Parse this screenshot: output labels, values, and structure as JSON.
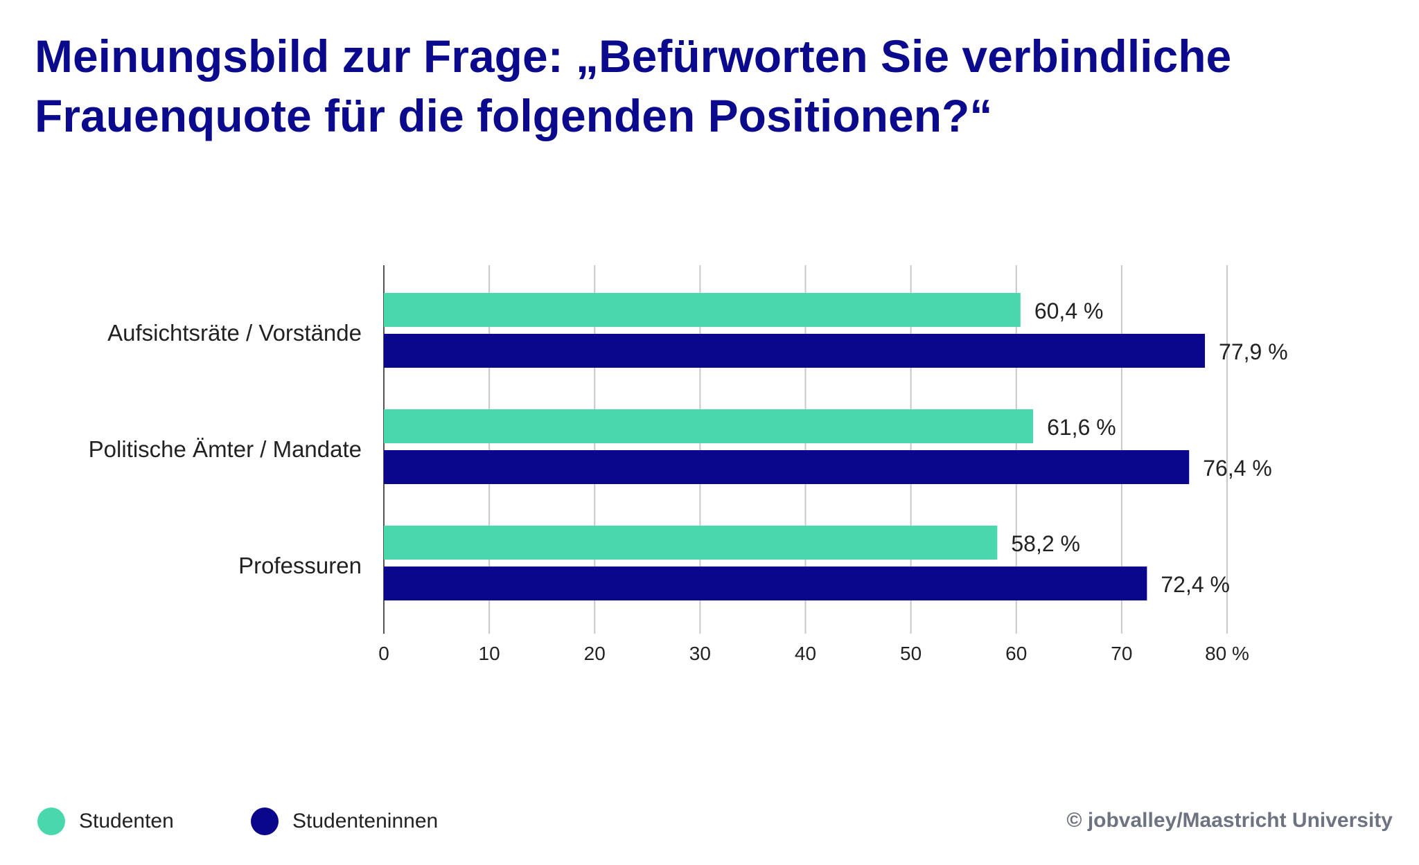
{
  "chart_data": {
    "type": "bar",
    "orientation": "horizontal",
    "title": "Meinungsbild zur Frage: „Befürworten Sie verbindliche Frauenquote für die folgenden Positionen?“",
    "categories": [
      "Aufsichtsräte / Vorstände",
      "Politische Ämter / Mandate",
      "Professuren"
    ],
    "series": [
      {
        "name": "Studenten",
        "color": "#48d8ac",
        "values": [
          60.4,
          61.6,
          58.2
        ],
        "labels": [
          "60,4 %",
          "61,6 %",
          "58,2 %"
        ]
      },
      {
        "name": "Studenteninnen",
        "color": "#0b078c",
        "values": [
          77.9,
          76.4,
          72.4
        ],
        "labels": [
          "77,9 %",
          "76,4 %",
          "72,4 %"
        ]
      }
    ],
    "xlim": [
      0,
      80
    ],
    "xticks": [
      0,
      10,
      20,
      30,
      40,
      50,
      60,
      70,
      80
    ],
    "xtick_labels": [
      "0",
      "10",
      "20",
      "30",
      "40",
      "50",
      "60",
      "70",
      "80 %"
    ],
    "grid": true,
    "legend_position": "bottom-left"
  },
  "credit": "© jobvalley/Maastricht University"
}
